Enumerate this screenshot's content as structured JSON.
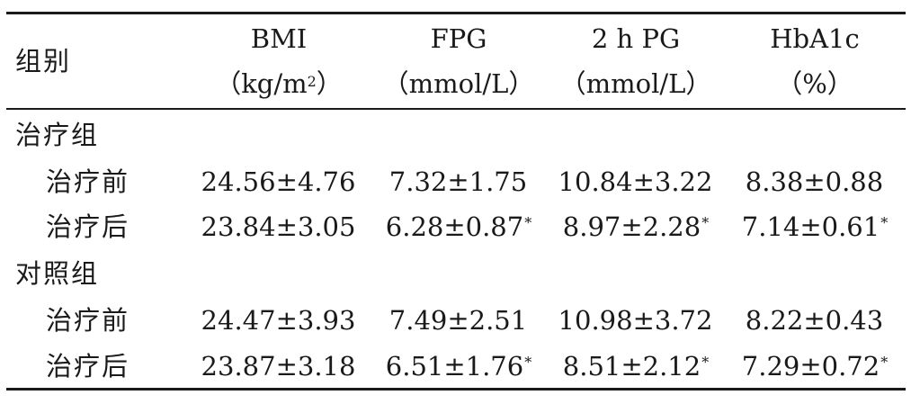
{
  "table": {
    "header": {
      "group_label": "组别",
      "columns": [
        {
          "name": "BMI",
          "unit_open": "（kg/m",
          "unit_exp": "2",
          "unit_close": "）"
        },
        {
          "name": "FPG",
          "unit_open": "（mmol/L）",
          "unit_exp": "",
          "unit_close": ""
        },
        {
          "name": "2 h PG",
          "unit_open": "（mmol/L）",
          "unit_exp": "",
          "unit_close": ""
        },
        {
          "name": "HbA1c",
          "unit_open": "（%）",
          "unit_exp": "",
          "unit_close": ""
        }
      ]
    },
    "groups": [
      {
        "name": "治疗组",
        "rows": [
          {
            "label": "治疗前",
            "values": [
              "24.56±4.76",
              "7.32±1.75",
              "10.84±3.22",
              "8.38±0.88"
            ],
            "marks": [
              "",
              "",
              "",
              ""
            ]
          },
          {
            "label": "治疗后",
            "values": [
              "23.84±3.05",
              "6.28±0.87",
              "8.97±2.28",
              "7.14±0.61"
            ],
            "marks": [
              "",
              "*",
              "*",
              "*"
            ]
          }
        ]
      },
      {
        "name": "对照组",
        "rows": [
          {
            "label": "治疗前",
            "values": [
              "24.47±3.93",
              "7.49±2.51",
              "10.98±3.72",
              "8.22±0.43"
            ],
            "marks": [
              "",
              "",
              "",
              ""
            ]
          },
          {
            "label": "治疗后",
            "values": [
              "23.87±3.18",
              "6.51±1.76",
              "8.51±2.12",
              "7.29±0.72"
            ],
            "marks": [
              "",
              "*",
              "*",
              "*"
            ]
          }
        ]
      }
    ]
  }
}
